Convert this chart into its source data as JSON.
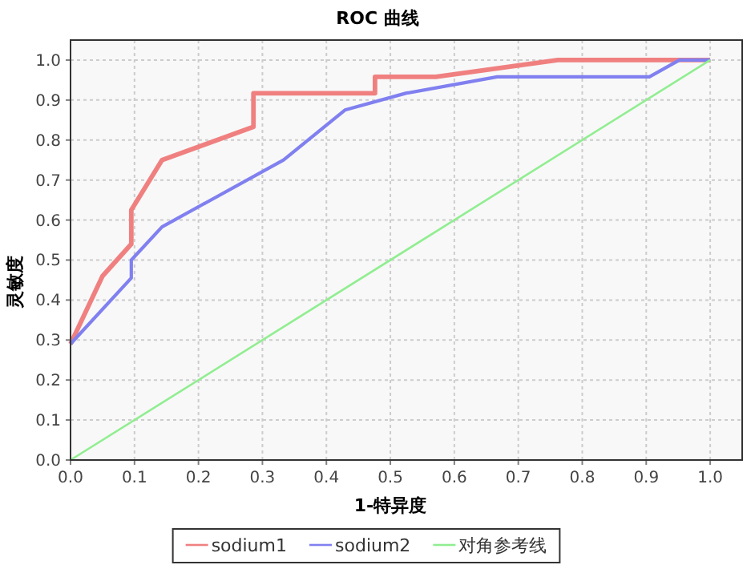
{
  "chart_data": {
    "type": "line",
    "title": "ROC 曲线",
    "xlabel": "1-特异度",
    "ylabel": "灵敏度",
    "xlim": [
      0,
      1.05
    ],
    "ylim": [
      0,
      1.05
    ],
    "xticks": [
      {
        "value": 0,
        "label": "0.0"
      },
      0.1,
      0.2,
      0.3,
      0.4,
      0.5,
      0.6,
      0.7,
      0.8,
      0.9,
      {
        "value": 1,
        "label": "1.0"
      }
    ],
    "yticks": [
      {
        "value": 0,
        "label": "0.0"
      },
      0.1,
      0.2,
      0.3,
      0.4,
      0.5,
      0.6,
      0.7,
      0.8,
      0.9,
      {
        "value": 1,
        "label": "1.0"
      }
    ],
    "grid": true,
    "legend": "bottom",
    "series": [
      {
        "name": "sodium1",
        "color": "#f08080",
        "x": [
          0,
          0.05,
          0.095,
          0.095,
          0.143,
          0.286,
          0.286,
          0.476,
          0.476,
          0.571,
          0.762,
          1
        ],
        "values": [
          0.29,
          0.46,
          0.54,
          0.625,
          0.75,
          0.833,
          0.917,
          0.917,
          0.958,
          0.958,
          1,
          1
        ]
      },
      {
        "name": "sodium2",
        "color": "#8080f0",
        "x": [
          0,
          0.095,
          0.095,
          0.143,
          0.333,
          0.429,
          0.524,
          0.667,
          0.905,
          0.952,
          1
        ],
        "values": [
          0.29,
          0.455,
          0.5,
          0.583,
          0.75,
          0.875,
          0.917,
          0.958,
          0.958,
          1,
          1
        ]
      },
      {
        "name": "对角参考线",
        "color": "#90ee90",
        "x": [
          0,
          1
        ],
        "values": [
          0,
          1
        ]
      }
    ]
  }
}
